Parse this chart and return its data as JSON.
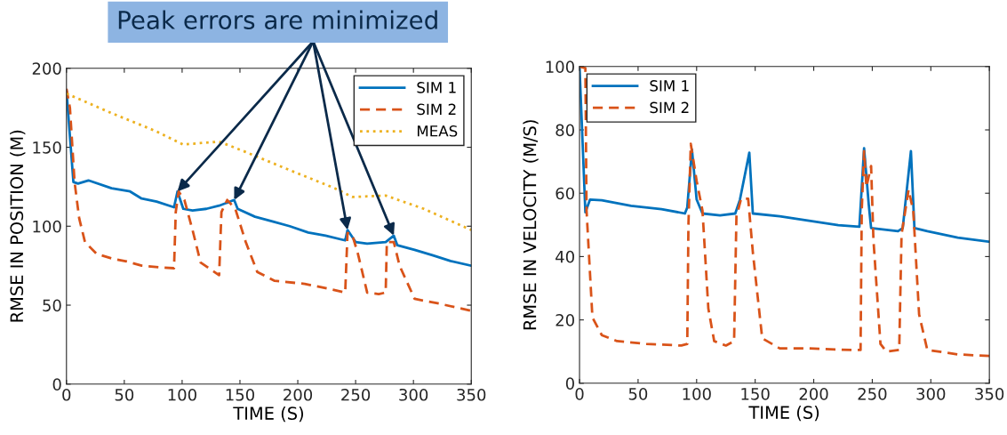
{
  "chart_data": [
    {
      "type": "line",
      "xlabel": "TIME (S)",
      "ylabel": "RMSE IN POSITION (M)",
      "xlim": [
        0,
        350
      ],
      "xticks": [
        0,
        50,
        100,
        150,
        200,
        250,
        300,
        350
      ],
      "ylim": [
        0,
        200
      ],
      "yticks": [
        0,
        50,
        100,
        150,
        200
      ],
      "grid": false,
      "legend": "top right",
      "annotations": [
        "Peak errors are minimized"
      ],
      "series": [
        {
          "name": "SIM 1",
          "color": "#0072bd",
          "line_style": "solid",
          "x": [
            0,
            6,
            10,
            19,
            39,
            55,
            65,
            78,
            93,
            96,
            101,
            109,
            121,
            132,
            145,
            148,
            163,
            178,
            193,
            209,
            224,
            241,
            243,
            250,
            260,
            276,
            283,
            286,
            301,
            317,
            332,
            350
          ],
          "values": [
            186,
            128,
            127,
            129,
            124,
            122,
            117.5,
            115.6,
            112,
            122,
            111,
            110,
            111,
            113,
            116.6,
            111,
            106,
            103,
            100,
            96,
            94,
            91,
            97.6,
            90,
            89,
            90,
            94,
            88,
            85,
            81.5,
            78,
            75
          ]
        },
        {
          "name": "SIM 2",
          "color": "#d95319",
          "line_style": "dashed",
          "x": [
            0,
            3,
            7,
            11,
            16,
            26,
            39,
            52,
            65,
            80,
            93,
            94.5,
            97,
            102,
            109,
            116,
            124,
            132,
            134,
            139,
            146,
            155,
            165,
            180,
            206,
            229,
            241,
            243,
            247,
            252,
            260,
            270,
            276,
            277,
            283,
            288,
            301,
            322,
            350
          ],
          "values": [
            187,
            175,
            128,
            105,
            90,
            82.5,
            79.6,
            77.7,
            75,
            74,
            73.4,
            109,
            122,
            116.6,
            97.6,
            77,
            73,
            69,
            109,
            116.6,
            111,
            90,
            71,
            65.4,
            63.5,
            60,
            58,
            95.7,
            94.8,
            82.5,
            58,
            57,
            58,
            90,
            90,
            75,
            54,
            51,
            46.4
          ]
        },
        {
          "name": "MEAS",
          "color": "#edb120",
          "line_style": "dotted",
          "x": [
            0,
            39,
            78,
            101,
            132,
            155,
            193,
            232,
            247,
            276,
            309,
            350
          ],
          "values": [
            184,
            171.6,
            160,
            151.7,
            153.6,
            147,
            135.5,
            124,
            118.5,
            119.4,
            111,
            97.6
          ]
        }
      ]
    },
    {
      "type": "line",
      "xlabel": "TIME (S)",
      "ylabel": "RMSE IN VELOCITY (M/S)",
      "xlim": [
        0,
        350
      ],
      "xticks": [
        0,
        50,
        100,
        150,
        200,
        250,
        300,
        350
      ],
      "ylim": [
        0,
        100
      ],
      "yticks": [
        0,
        20,
        40,
        60,
        80,
        100
      ],
      "grid": false,
      "legend": "top left",
      "series": [
        {
          "name": "SIM 1",
          "color": "#0072bd",
          "line_style": "solid",
          "x": [
            0,
            5,
            9,
            19,
            44,
            70,
            90,
            92,
            96,
            100,
            105,
            120,
            133,
            137,
            145,
            148,
            171,
            196,
            221,
            239,
            243,
            247,
            249,
            272,
            276,
            283,
            286,
            297,
            323,
            350
          ],
          "values": [
            100,
            54,
            58,
            57.8,
            56,
            55,
            53.6,
            55.5,
            73.8,
            58,
            53.6,
            53,
            53.6,
            58,
            72.8,
            53.6,
            52.7,
            51.3,
            49.9,
            49.4,
            74.2,
            56.4,
            49,
            48,
            49,
            73.3,
            49,
            48,
            46,
            44.7
          ]
        },
        {
          "name": "SIM 2",
          "color": "#d95319",
          "line_style": "dashed",
          "x": [
            0,
            5,
            6,
            11,
            19,
            32,
            57,
            87,
            92,
            93,
            95,
            100,
            105,
            110,
            115,
            125,
            132,
            134,
            138,
            144,
            148,
            156,
            171,
            196,
            232,
            240,
            241,
            243,
            245,
            249,
            251,
            257,
            262,
            273,
            275,
            281,
            285,
            290,
            297,
            323,
            350
          ],
          "values": [
            100,
            99.5,
            54.5,
            20.8,
            15.2,
            13.3,
            12.4,
            11.9,
            12.4,
            50,
            75.6,
            63.9,
            54.5,
            23.6,
            13.3,
            11.9,
            13.3,
            52.7,
            58.3,
            58.3,
            41.4,
            14.2,
            11,
            11,
            10.5,
            10.5,
            54.5,
            73.3,
            62,
            68.6,
            45.2,
            12.4,
            10,
            10.5,
            47,
            61.1,
            54.5,
            21.7,
            10.5,
            9.1,
            8.6
          ]
        }
      ]
    }
  ]
}
